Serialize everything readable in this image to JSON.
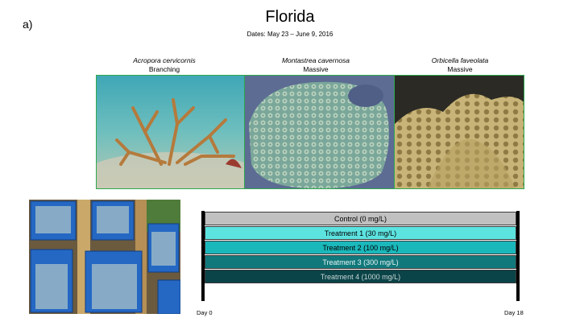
{
  "panel_label": "a)",
  "title": "Florida",
  "dates": "Dates: May 23 – June 9, 2016",
  "corals": [
    {
      "species": "Acropora cervicornis",
      "morphology": "Branching"
    },
    {
      "species": "Montastrea cavernosa",
      "morphology": "Massive"
    },
    {
      "species": "Orbicella faveolata",
      "morphology": "Massive"
    }
  ],
  "treatments": [
    {
      "label": "Control (0 mg/L)",
      "color": "#c0c0c0",
      "text_color": "#000000"
    },
    {
      "label": "Treatment 1 (30 mg/L)",
      "color": "#5ce3e0",
      "text_color": "#000000"
    },
    {
      "label": "Treatment 2 (100 mg/L)",
      "color": "#1bb8bb",
      "text_color": "#000000"
    },
    {
      "label": "Treatment 3 (300 mg/L)",
      "color": "#11797c",
      "text_color": "#e8f4f4"
    },
    {
      "label": "Treatment 4 (1000 mg/L)",
      "color": "#0b4448",
      "text_color": "#c9d6d6"
    }
  ],
  "timeline": {
    "start_label": "Day 0",
    "end_label": "Day 18"
  },
  "colors": {
    "photo_border": "#2fa84f"
  }
}
